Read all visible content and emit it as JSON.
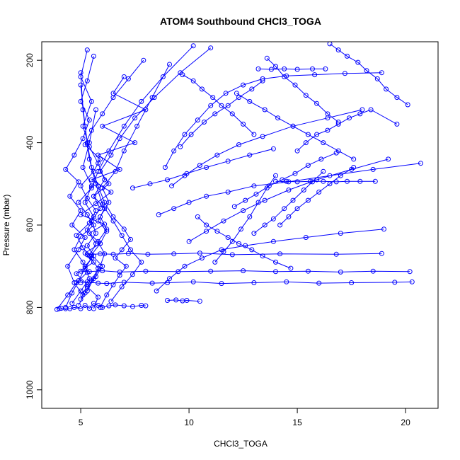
{
  "chart_data": {
    "type": "scatter",
    "title": "ATOM4 Southbound CHCl3_TOGA",
    "xlabel": "CHCl3_TOGA",
    "ylabel": "Pressure (mbar)",
    "xlim": [
      3.2,
      21.5
    ],
    "ylim": [
      1045,
      155
    ],
    "y_axis_reversed": true,
    "x_ticks": [
      5,
      10,
      15,
      20
    ],
    "x_tick_labels": [
      "5",
      "10",
      "15",
      "20"
    ],
    "y_ticks": [
      200,
      400,
      600,
      800,
      1000
    ],
    "y_tick_labels": [
      "200",
      "400",
      "600",
      "800",
      "1000"
    ],
    "grid": false,
    "legend": "none",
    "marker": "open-circle",
    "line": "connected",
    "series_color": "#0000ff",
    "series": [
      {
        "x": [
          4.0,
          4.1,
          4.3,
          4.5,
          4.7,
          5.0,
          5.2,
          5.4,
          5.6,
          5.8,
          6.0,
          6.3,
          6.6,
          7.0,
          7.4,
          7.8,
          8.0
        ],
        "y": [
          803,
          802,
          803,
          803,
          800,
          803,
          795,
          802,
          790,
          795,
          800,
          796,
          794,
          796,
          798,
          795,
          796
        ]
      },
      {
        "x": [
          5.0,
          5.3,
          5.8,
          6.2,
          7.0,
          8.3,
          9.0,
          10.2,
          11.5,
          13.0,
          14.5,
          16.0,
          17.5,
          19.5,
          20.3
        ],
        "y": [
          740,
          738,
          741,
          742,
          739,
          741,
          740,
          738,
          742,
          740,
          738,
          741,
          740,
          739,
          738
        ]
      },
      {
        "x": [
          5.0,
          5.4,
          6.0,
          6.8,
          8.0,
          9.5,
          11.0,
          12.5,
          14.0,
          15.5,
          17.0,
          18.5,
          20.2
        ],
        "y": [
          712,
          713,
          711,
          714,
          712,
          713,
          712,
          711,
          713,
          712,
          714,
          712,
          713
        ]
      },
      {
        "x": [
          5.3,
          5.9,
          6.5,
          7.2,
          8.1,
          9.3,
          10.5,
          12.0,
          14.2,
          16.8,
          18.9
        ],
        "y": [
          672,
          670,
          671,
          669,
          671,
          670,
          668,
          672,
          670,
          671,
          669
        ]
      },
      {
        "x": [
          14.0,
          14.5,
          15.0,
          15.6,
          16.2,
          16.8,
          17.3,
          17.9,
          18.6
        ],
        "y": [
          494,
          494,
          495,
          494,
          494,
          495,
          494,
          494,
          494
        ]
      },
      {
        "x": [
          13.2,
          13.8,
          14.4,
          15.0,
          15.7,
          16.3
        ],
        "y": [
          221,
          222,
          221,
          222,
          221,
          221
        ]
      },
      {
        "x": [
          9.0,
          9.4,
          9.7,
          9.9,
          10.5
        ],
        "y": [
          783,
          782,
          784,
          783,
          785
        ]
      },
      {
        "x": [
          5.0,
          5.3,
          4.8,
          5.6,
          5.2,
          5.9,
          5.4,
          6.1,
          5.0,
          5.7,
          6.4,
          5.5,
          6.8,
          5.8,
          7.5,
          6.0,
          8.0,
          6.5,
          7.0
        ],
        "y": [
          780,
          745,
          718,
          690,
          668,
          645,
          620,
          598,
          575,
          548,
          520,
          490,
          465,
          430,
          400,
          360,
          320,
          280,
          240
        ]
      },
      {
        "x": [
          4.3,
          4.6,
          4.9,
          5.2,
          5.5,
          5.1,
          4.8,
          5.4,
          5.7,
          5.3,
          5.0,
          5.6,
          5.9,
          5.2,
          5.5,
          6.0,
          6.5,
          7.2,
          7.9
        ],
        "y": [
          800,
          765,
          735,
          705,
          680,
          655,
          625,
          595,
          565,
          535,
          505,
          470,
          440,
          405,
          370,
          330,
          290,
          245,
          200
        ]
      },
      {
        "x": [
          3.9,
          4.4,
          4.8,
          5.3,
          5.1,
          4.7,
          5.0,
          5.6,
          5.3,
          4.9,
          5.5,
          5.8,
          6.3,
          7.0,
          7.8,
          8.8,
          10.2
        ],
        "y": [
          805,
          770,
          740,
          715,
          690,
          660,
          628,
          600,
          575,
          545,
          510,
          470,
          420,
          360,
          300,
          240,
          165
        ]
      },
      {
        "x": [
          5.6,
          5.8,
          5.3,
          5.7,
          6.0,
          5.5,
          5.9,
          6.2,
          5.8,
          6.1,
          5.6,
          6.3,
          5.9,
          6.4,
          6.8,
          7.5,
          8.4,
          9.6,
          11.0
        ],
        "y": [
          803,
          775,
          750,
          725,
          700,
          672,
          645,
          615,
          590,
          560,
          530,
          500,
          470,
          430,
          390,
          340,
          290,
          230,
          170
        ]
      },
      {
        "x": [
          5.9,
          6.2,
          6.5,
          6.8,
          7.1,
          6.6,
          6.9,
          7.3,
          7.0,
          6.5,
          6.1,
          5.8,
          5.5,
          5.3,
          5.1,
          5.0
        ],
        "y": [
          800,
          770,
          745,
          722,
          700,
          680,
          660,
          635,
          610,
          580,
          545,
          505,
          460,
          400,
          320,
          230
        ]
      },
      {
        "x": [
          4.6,
          5.0,
          5.4,
          5.2,
          5.6,
          5.3,
          5.7,
          5.5,
          5.9,
          5.6,
          6.1,
          5.8,
          5.4,
          5.1,
          5.5,
          5.0,
          5.3
        ],
        "y": [
          790,
          760,
          730,
          700,
          675,
          650,
          620,
          590,
          560,
          530,
          490,
          450,
          410,
          360,
          300,
          240,
          175
        ]
      },
      {
        "x": [
          5.1,
          4.7,
          4.4,
          4.9,
          5.2,
          4.6,
          5.0,
          4.5,
          4.9,
          4.3,
          4.7,
          5.1,
          5.4,
          5.0,
          5.3,
          5.6
        ],
        "y": [
          770,
          740,
          700,
          660,
          630,
          600,
          565,
          530,
          495,
          465,
          430,
          390,
          345,
          300,
          250,
          190
        ]
      },
      {
        "x": [
          6.4,
          6.9,
          7.4,
          7.8,
          7.3,
          6.9,
          6.5,
          6.0,
          5.7,
          5.4,
          5.2,
          5.0
        ],
        "y": [
          785,
          750,
          720,
          690,
          660,
          625,
          590,
          550,
          500,
          440,
          360,
          260
        ]
      },
      {
        "x": [
          5.3,
          5.6,
          5.9,
          6.1,
          5.8,
          6.2,
          5.9,
          6.3,
          6.0,
          6.6,
          7.0,
          7.6,
          8.3,
          9.1
        ],
        "y": [
          760,
          730,
          700,
          670,
          640,
          610,
          580,
          545,
          510,
          470,
          420,
          360,
          290,
          210
        ]
      },
      {
        "x": [
          4.9,
          5.2,
          5.5,
          5.8,
          5.4,
          5.7,
          5.3,
          5.6,
          5.2,
          5.5,
          5.1,
          5.4,
          5.7
        ],
        "y": [
          795,
          765,
          735,
          705,
          675,
          645,
          612,
          580,
          545,
          505,
          460,
          400,
          320
        ]
      },
      {
        "x": [
          8.5,
          9.1,
          9.8,
          10.6,
          11.5,
          12.6,
          13.9,
          15.4,
          17.0,
          19.0
        ],
        "y": [
          760,
          730,
          700,
          680,
          660,
          650,
          640,
          630,
          620,
          610
        ]
      },
      {
        "x": [
          8.6,
          9.3,
          10.0,
          10.8,
          11.8,
          13.0,
          14.6,
          16.5,
          18.5,
          20.7
        ],
        "y": [
          575,
          560,
          545,
          530,
          520,
          505,
          495,
          480,
          465,
          450
        ]
      },
      {
        "x": [
          9.2,
          9.8,
          10.5,
          11.3,
          12.3,
          13.4,
          14.8,
          16.4,
          18.0
        ],
        "y": [
          505,
          480,
          455,
          430,
          405,
          385,
          360,
          340,
          320
        ]
      },
      {
        "x": [
          10.0,
          10.8,
          11.6,
          12.5,
          13.5,
          14.6,
          15.9,
          17.5,
          19.2
        ],
        "y": [
          640,
          615,
          590,
          565,
          540,
          515,
          490,
          465,
          440
        ]
      },
      {
        "x": [
          9.6,
          10.1,
          10.7,
          11.2,
          11.8,
          12.3,
          12.9,
          13.4
        ],
        "y": [
          410,
          380,
          350,
          330,
          310,
          290,
          270,
          250
        ]
      },
      {
        "x": [
          8.9,
          9.3,
          9.8,
          10.4,
          11.0,
          11.7,
          12.5,
          13.4,
          14.5,
          15.8,
          17.2,
          18.9
        ],
        "y": [
          460,
          420,
          380,
          345,
          310,
          280,
          260,
          245,
          238,
          235,
          232,
          230
        ]
      },
      {
        "x": [
          12.1,
          12.6,
          13.1,
          13.7,
          14.3,
          14.9,
          15.5,
          16.1,
          16.8
        ],
        "y": [
          555,
          540,
          525,
          505,
          490,
          475,
          455,
          440,
          425
        ]
      },
      {
        "x": [
          13.0,
          13.5,
          13.9,
          14.4,
          14.8,
          15.3,
          15.7,
          16.2
        ],
        "y": [
          620,
          600,
          585,
          560,
          540,
          515,
          495,
          470
        ]
      },
      {
        "x": [
          11.2,
          11.6,
          12.0,
          12.4,
          12.8,
          13.2,
          13.6,
          14.0
        ],
        "y": [
          690,
          665,
          640,
          610,
          580,
          545,
          510,
          480
        ]
      },
      {
        "x": [
          14.2,
          14.6,
          15.0,
          15.5,
          16.0,
          16.5,
          17.0,
          17.6
        ],
        "y": [
          600,
          580,
          560,
          540,
          520,
          500,
          480,
          460
        ]
      },
      {
        "x": [
          15.0,
          15.4,
          15.9,
          16.4,
          16.9,
          17.4,
          17.9,
          18.4,
          19.6
        ],
        "y": [
          420,
          400,
          380,
          370,
          355,
          340,
          330,
          320,
          355
        ]
      },
      {
        "x": [
          12.2,
          12.8,
          13.5,
          14.1,
          14.8,
          15.5,
          16.2,
          16.9,
          17.6
        ],
        "y": [
          280,
          300,
          320,
          340,
          360,
          380,
          400,
          420,
          440
        ]
      },
      {
        "x": [
          13.6,
          14.0,
          14.4,
          14.9,
          15.4,
          15.9,
          16.4,
          16.9
        ],
        "y": [
          195,
          215,
          240,
          260,
          285,
          305,
          330,
          350
        ]
      },
      {
        "x": [
          9.7,
          10.2,
          10.6,
          11.1,
          11.5,
          12.0,
          12.5,
          13.0
        ],
        "y": [
          235,
          250,
          270,
          290,
          310,
          330,
          355,
          380
        ]
      },
      {
        "x": [
          7.4,
          8.2,
          9.0,
          9.9,
          10.8,
          11.8,
          12.8,
          13.9
        ],
        "y": [
          510,
          500,
          490,
          475,
          460,
          445,
          430,
          415
        ]
      },
      {
        "x": [
          16.5,
          16.9,
          17.3,
          17.8,
          18.2,
          18.7,
          19.1,
          19.6,
          20.1
        ],
        "y": [
          160,
          175,
          190,
          205,
          225,
          245,
          270,
          290,
          308
        ]
      },
      {
        "x": [
          10.4,
          10.8,
          11.3,
          11.8,
          12.3,
          12.9,
          13.4,
          14.0,
          14.7
        ],
        "y": [
          580,
          600,
          615,
          630,
          645,
          660,
          675,
          690,
          705
        ]
      }
    ]
  }
}
